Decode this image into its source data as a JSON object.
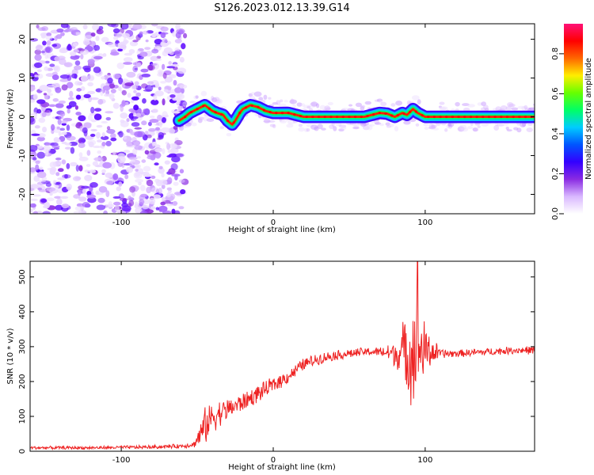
{
  "title": "S126.2023.012.13.39.G14",
  "colors": {
    "snr_line": "#ee2222",
    "colormap": [
      "#ffffff",
      "#d9b8ff",
      "#8a2be2",
      "#3300ff",
      "#0055ff",
      "#00ccff",
      "#00ff66",
      "#66ff00",
      "#ffee00",
      "#ff6600",
      "#ff0000",
      "#ff1177"
    ]
  },
  "chart_data": [
    {
      "type": "heatmap",
      "name": "spectrogram",
      "xlabel": "Height of straight line (km)",
      "ylabel": "Frequency (Hz)",
      "xlim": [
        -160,
        172
      ],
      "ylim": [
        -25,
        24
      ],
      "xticks": [
        -100,
        0,
        100
      ],
      "xtick_labels": [
        "-100",
        "0",
        "100"
      ],
      "yticks": [
        -20,
        -10,
        0,
        10,
        20
      ],
      "ytick_labels": [
        "-20",
        "-10",
        "0",
        "10",
        "20"
      ],
      "noise_region_x": [
        -160,
        -62
      ],
      "ridge": {
        "x": [
          -62,
          -58,
          -55,
          -50,
          -45,
          -40,
          -37,
          -33,
          -30,
          -27,
          -25,
          -22,
          -20,
          -15,
          -10,
          -5,
          0,
          10,
          15,
          20,
          30,
          40,
          60,
          65,
          70,
          75,
          80,
          85,
          88,
          92,
          95,
          100,
          120,
          140,
          160,
          170
        ],
        "y": [
          -1,
          0,
          1,
          2,
          3,
          1.5,
          1,
          0.5,
          -1,
          -2,
          -1,
          1,
          2,
          3,
          2.5,
          1.5,
          1,
          1,
          0.5,
          0,
          0,
          0,
          0,
          0.5,
          1,
          0.8,
          0,
          1,
          0.5,
          2,
          1,
          0,
          0,
          0,
          0,
          0
        ]
      },
      "colorbar": {
        "label": "Normalized spectral amplitude",
        "range": [
          0,
          0.95
        ],
        "ticks": [
          0,
          0.2,
          0.4,
          0.6,
          0.8
        ],
        "tick_labels": [
          "0.0",
          "0.2",
          "0.4",
          "0.6",
          "0.8"
        ]
      }
    },
    {
      "type": "line",
      "name": "snr",
      "xlabel": "Height of straight line (km)",
      "ylabel": "SNR (10 * v/v)",
      "xlim": [
        -160,
        172
      ],
      "ylim": [
        0,
        545
      ],
      "xticks": [
        -100,
        0,
        100
      ],
      "xtick_labels": [
        "-100",
        "0",
        "100"
      ],
      "yticks": [
        0,
        100,
        200,
        300,
        400,
        500
      ],
      "ytick_labels": [
        "0",
        "100",
        "200",
        "300",
        "400",
        "500"
      ],
      "envelope": {
        "x": [
          -160,
          -120,
          -80,
          -60,
          -52,
          -45,
          -40,
          -30,
          -20,
          -10,
          0,
          10,
          20,
          30,
          40,
          50,
          60,
          70,
          80,
          90,
          95,
          100,
          110,
          120,
          140,
          160,
          172
        ],
        "y": [
          10,
          10,
          12,
          15,
          20,
          70,
          100,
          120,
          140,
          165,
          190,
          215,
          250,
          265,
          275,
          280,
          285,
          285,
          280,
          285,
          290,
          290,
          280,
          280,
          285,
          290,
          290
        ],
        "noise": [
          5,
          5,
          6,
          7,
          10,
          60,
          50,
          35,
          30,
          28,
          25,
          22,
          20,
          18,
          16,
          15,
          14,
          15,
          40,
          150,
          200,
          80,
          15,
          12,
          12,
          12,
          14
        ]
      },
      "peak": {
        "x": 95,
        "y": 545
      }
    }
  ]
}
